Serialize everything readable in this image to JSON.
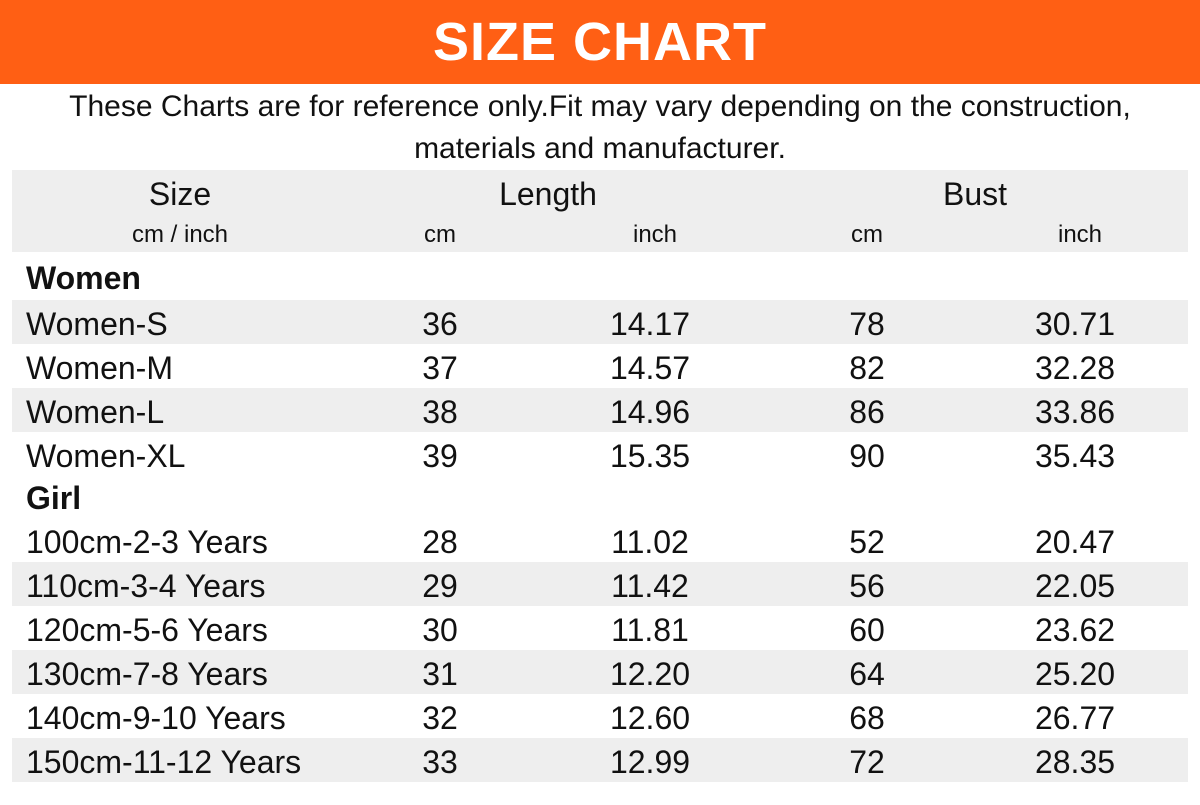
{
  "banner": {
    "title": "SIZE CHART"
  },
  "note": {
    "line1": "These Charts are for reference only.Fit may vary depending on the construction,",
    "line2": "materials and manufacturer."
  },
  "header": {
    "size": "Size",
    "size_unit": "cm / inch",
    "length": "Length",
    "bust": "Bust",
    "cm": "cm",
    "inch": "inch"
  },
  "groups": {
    "women": "Women",
    "girl": "Girl"
  },
  "women_rows": [
    {
      "size": "Women-S",
      "length_cm": "36",
      "length_inch": "14.17",
      "bust_cm": "78",
      "bust_inch": "30.71"
    },
    {
      "size": "Women-M",
      "length_cm": "37",
      "length_inch": "14.57",
      "bust_cm": "82",
      "bust_inch": "32.28"
    },
    {
      "size": "Women-L",
      "length_cm": "38",
      "length_inch": "14.96",
      "bust_cm": "86",
      "bust_inch": "33.86"
    },
    {
      "size": "Women-XL",
      "length_cm": "39",
      "length_inch": "15.35",
      "bust_cm": "90",
      "bust_inch": "35.43"
    }
  ],
  "girl_rows": [
    {
      "size": "100cm-2-3 Years",
      "length_cm": "28",
      "length_inch": "11.02",
      "bust_cm": "52",
      "bust_inch": "20.47"
    },
    {
      "size": "110cm-3-4 Years",
      "length_cm": "29",
      "length_inch": "11.42",
      "bust_cm": "56",
      "bust_inch": "22.05"
    },
    {
      "size": "120cm-5-6 Years",
      "length_cm": "30",
      "length_inch": "11.81",
      "bust_cm": "60",
      "bust_inch": "23.62"
    },
    {
      "size": "130cm-7-8 Years",
      "length_cm": "31",
      "length_inch": "12.20",
      "bust_cm": "64",
      "bust_inch": "25.20"
    },
    {
      "size": "140cm-9-10 Years",
      "length_cm": "32",
      "length_inch": "12.60",
      "bust_cm": "68",
      "bust_inch": "26.77"
    },
    {
      "size": "150cm-11-12 Years",
      "length_cm": "33",
      "length_inch": "12.99",
      "bust_cm": "72",
      "bust_inch": "28.35"
    }
  ],
  "colors": {
    "banner": "#ff5f14",
    "stripe": "#eeeeee",
    "banner_text": "#ffffff"
  }
}
